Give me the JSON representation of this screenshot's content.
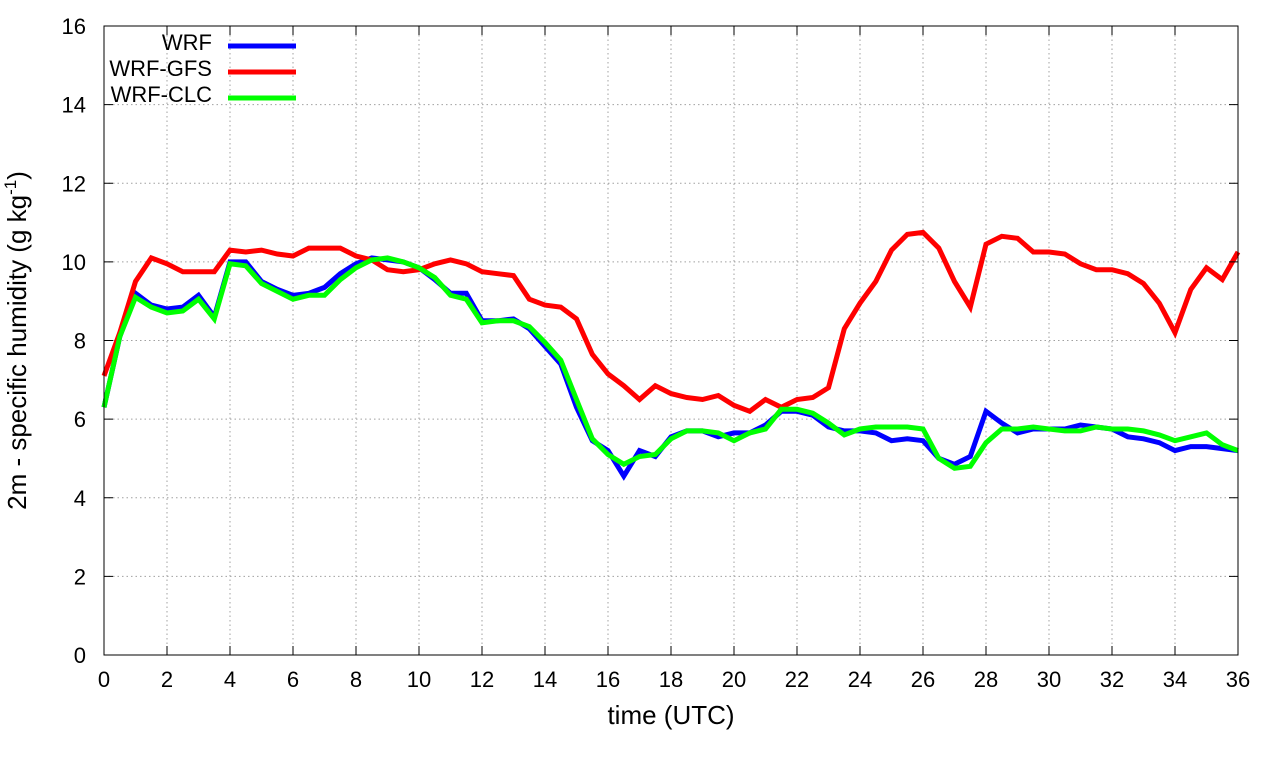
{
  "chart_data": {
    "type": "line",
    "title": "",
    "xlabel": "time (UTC)",
    "ylabel": {
      "main": "2m - specific humidity (g kg",
      "sup": "-1",
      "close": ")"
    },
    "xlim": [
      0,
      36
    ],
    "ylim": [
      0,
      16
    ],
    "xticks": [
      0,
      2,
      4,
      6,
      8,
      10,
      12,
      14,
      16,
      18,
      20,
      22,
      24,
      26,
      28,
      30,
      32,
      34,
      36
    ],
    "yticks": [
      0,
      2,
      4,
      6,
      8,
      10,
      12,
      14,
      16
    ],
    "grid": true,
    "grid_style": "dotted",
    "legend_position": "top-left",
    "x": [
      0,
      0.5,
      1,
      1.5,
      2,
      2.5,
      3,
      3.5,
      4,
      4.5,
      5,
      5.5,
      6,
      6.5,
      7,
      7.5,
      8,
      8.5,
      9,
      9.5,
      10,
      10.5,
      11,
      11.5,
      12,
      12.5,
      13,
      13.5,
      14,
      14.5,
      15,
      15.5,
      16,
      16.5,
      17,
      17.5,
      18,
      18.5,
      19,
      19.5,
      20,
      20.5,
      21,
      21.5,
      22,
      22.5,
      23,
      23.5,
      24,
      24.5,
      25,
      25.5,
      26,
      26.5,
      27,
      27.5,
      28,
      28.5,
      29,
      29.5,
      30,
      30.5,
      31,
      31.5,
      32,
      32.5,
      33,
      33.5,
      34,
      34.5,
      35,
      35.5,
      36
    ],
    "series": [
      {
        "name": "WRF",
        "color": "#0000ff",
        "values": [
          6.3,
          8.1,
          9.2,
          8.9,
          8.8,
          8.85,
          9.15,
          8.6,
          10.0,
          10.0,
          9.5,
          9.3,
          9.15,
          9.2,
          9.35,
          9.7,
          9.95,
          10.1,
          10.05,
          10.0,
          9.85,
          9.55,
          9.2,
          9.2,
          8.5,
          8.5,
          8.55,
          8.3,
          7.85,
          7.4,
          6.3,
          5.45,
          5.2,
          4.55,
          5.2,
          5.05,
          5.55,
          5.7,
          5.7,
          5.55,
          5.65,
          5.65,
          5.85,
          6.2,
          6.2,
          6.1,
          5.8,
          5.7,
          5.7,
          5.65,
          5.45,
          5.5,
          5.45,
          5.0,
          4.85,
          5.05,
          6.2,
          5.9,
          5.65,
          5.75,
          5.75,
          5.75,
          5.85,
          5.8,
          5.75,
          5.55,
          5.5,
          5.4,
          5.2,
          5.3,
          5.3,
          5.25,
          5.2
        ]
      },
      {
        "name": "WRF-GFS",
        "color": "#ff0000",
        "values": [
          7.1,
          8.2,
          9.5,
          10.1,
          9.95,
          9.75,
          9.75,
          9.75,
          10.3,
          10.25,
          10.3,
          10.2,
          10.15,
          10.35,
          10.35,
          10.35,
          10.15,
          10.05,
          9.8,
          9.75,
          9.8,
          9.95,
          10.05,
          9.95,
          9.75,
          9.7,
          9.65,
          9.05,
          8.9,
          8.85,
          8.55,
          7.65,
          7.15,
          6.85,
          6.5,
          6.85,
          6.65,
          6.55,
          6.5,
          6.6,
          6.35,
          6.2,
          6.5,
          6.3,
          6.5,
          6.55,
          6.8,
          8.3,
          8.95,
          9.5,
          10.3,
          10.7,
          10.75,
          10.35,
          9.5,
          8.85,
          10.45,
          10.65,
          10.6,
          10.25,
          10.25,
          10.2,
          9.95,
          9.8,
          9.8,
          9.7,
          9.45,
          8.95,
          8.2,
          9.3,
          9.85,
          9.55,
          10.25
        ]
      },
      {
        "name": "WRF-CLC",
        "color": "#00ff00",
        "values": [
          6.3,
          8.1,
          9.1,
          8.85,
          8.7,
          8.75,
          9.05,
          8.55,
          9.95,
          9.9,
          9.45,
          9.25,
          9.05,
          9.15,
          9.15,
          9.55,
          9.85,
          10.05,
          10.1,
          10.0,
          9.85,
          9.6,
          9.15,
          9.05,
          8.45,
          8.5,
          8.5,
          8.35,
          7.95,
          7.5,
          6.5,
          5.5,
          5.1,
          4.85,
          5.05,
          5.1,
          5.5,
          5.7,
          5.7,
          5.65,
          5.45,
          5.65,
          5.75,
          6.25,
          6.25,
          6.15,
          5.9,
          5.6,
          5.75,
          5.8,
          5.8,
          5.8,
          5.75,
          5.0,
          4.75,
          4.8,
          5.4,
          5.75,
          5.75,
          5.8,
          5.75,
          5.7,
          5.7,
          5.8,
          5.75,
          5.75,
          5.7,
          5.6,
          5.45,
          5.55,
          5.65,
          5.35,
          5.2
        ]
      }
    ]
  }
}
